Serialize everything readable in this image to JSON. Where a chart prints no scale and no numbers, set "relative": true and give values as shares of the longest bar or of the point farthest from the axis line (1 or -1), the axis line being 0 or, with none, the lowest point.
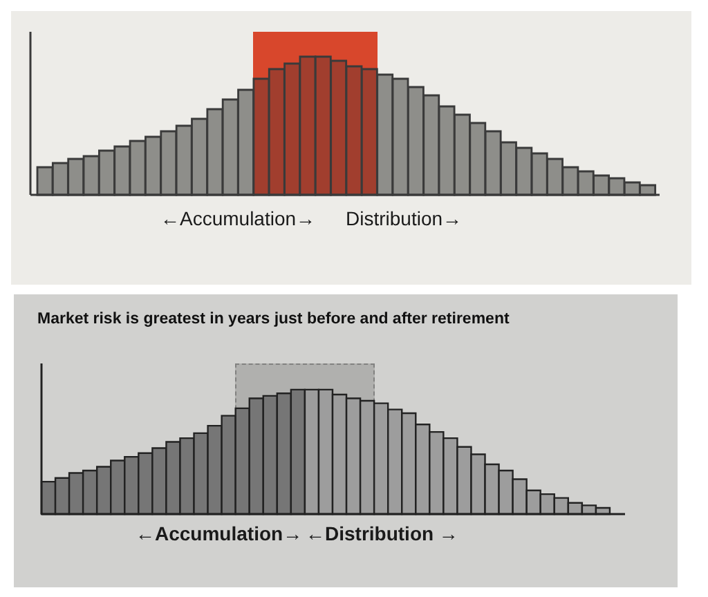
{
  "chart_data": [
    {
      "type": "bar",
      "relative": true,
      "categories": [
        null,
        null,
        null,
        null,
        null,
        null,
        null,
        null,
        null,
        null,
        null,
        null,
        null,
        null,
        null,
        null,
        null,
        null,
        null,
        null,
        null,
        null,
        null,
        null,
        null,
        null,
        null,
        null,
        null,
        null,
        null,
        null,
        null,
        null,
        null,
        null,
        null,
        null,
        null,
        null
      ],
      "values": [
        0.2,
        0.23,
        0.26,
        0.28,
        0.32,
        0.35,
        0.39,
        0.42,
        0.46,
        0.5,
        0.55,
        0.62,
        0.69,
        0.76,
        0.84,
        0.91,
        0.95,
        1,
        1,
        0.97,
        0.93,
        0.91,
        0.87,
        0.84,
        0.78,
        0.72,
        0.64,
        0.58,
        0.52,
        0.46,
        0.38,
        0.34,
        0.3,
        0.26,
        0.2,
        0.17,
        0.14,
        0.12,
        0.09,
        0.07
      ],
      "colors": [
        "#8e8e8a",
        "#8e8e8a",
        "#8e8e8a",
        "#8e8e8a",
        "#8e8e8a",
        "#8e8e8a",
        "#8e8e8a",
        "#8e8e8a",
        "#8e8e8a",
        "#8e8e8a",
        "#8e8e8a",
        "#8e8e8a",
        "#8e8e8a",
        "#8e8e8a",
        "#a13e2e",
        "#a13e2e",
        "#a13e2e",
        "#a13e2e",
        "#a13e2e",
        "#a13e2e",
        "#a13e2e",
        "#a13e2e",
        "#8e8e8a",
        "#8e8e8a",
        "#8e8e8a",
        "#8e8e8a",
        "#8e8e8a",
        "#8e8e8a",
        "#8e8e8a",
        "#8e8e8a",
        "#8e8e8a",
        "#8e8e8a",
        "#8e8e8a",
        "#8e8e8a",
        "#8e8e8a",
        "#8e8e8a",
        "#8e8e8a",
        "#8e8e8a",
        "#8e8e8a",
        "#8e8e8a"
      ],
      "annotations": [
        "←Accumulation→",
        "Distribution→"
      ]
    },
    {
      "type": "bar",
      "relative": true,
      "title": "Market risk is greatest in years just before and after retirement",
      "categories": [
        null,
        null,
        null,
        null,
        null,
        null,
        null,
        null,
        null,
        null,
        null,
        null,
        null,
        null,
        null,
        null,
        null,
        null,
        null,
        null,
        null,
        null,
        null,
        null,
        null,
        null,
        null,
        null,
        null,
        null,
        null,
        null,
        null,
        null,
        null,
        null,
        null,
        null,
        null,
        null,
        null
      ],
      "values": [
        0.26,
        0.29,
        0.33,
        0.35,
        0.38,
        0.43,
        0.46,
        0.49,
        0.53,
        0.58,
        0.61,
        0.65,
        0.71,
        0.79,
        0.85,
        0.93,
        0.95,
        0.97,
        1,
        1,
        1,
        0.96,
        0.93,
        0.91,
        0.89,
        0.84,
        0.81,
        0.72,
        0.66,
        0.61,
        0.54,
        0.48,
        0.4,
        0.35,
        0.28,
        0.19,
        0.16,
        0.13,
        0.09,
        0.07,
        0.05
      ],
      "colors": [
        "#767676",
        "#767676",
        "#767676",
        "#767676",
        "#767676",
        "#767676",
        "#767676",
        "#767676",
        "#767676",
        "#767676",
        "#767676",
        "#767676",
        "#767676",
        "#767676",
        "#767676",
        "#767676",
        "#767676",
        "#767676",
        "#767676",
        "#9d9d9d",
        "#9d9d9d",
        "#9d9d9d",
        "#9d9d9d",
        "#9d9d9d",
        "#9d9d9d",
        "#9d9d9d",
        "#9d9d9d",
        "#9d9d9d",
        "#9d9d9d",
        "#9d9d9d",
        "#9d9d9d",
        "#9d9d9d",
        "#9d9d9d",
        "#9d9d9d",
        "#9d9d9d",
        "#9d9d9d",
        "#9d9d9d",
        "#9d9d9d",
        "#9d9d9d",
        "#9d9d9d",
        "#9d9d9d"
      ],
      "annotations": [
        "←Accumulation→",
        "←Distribution →"
      ]
    }
  ]
}
